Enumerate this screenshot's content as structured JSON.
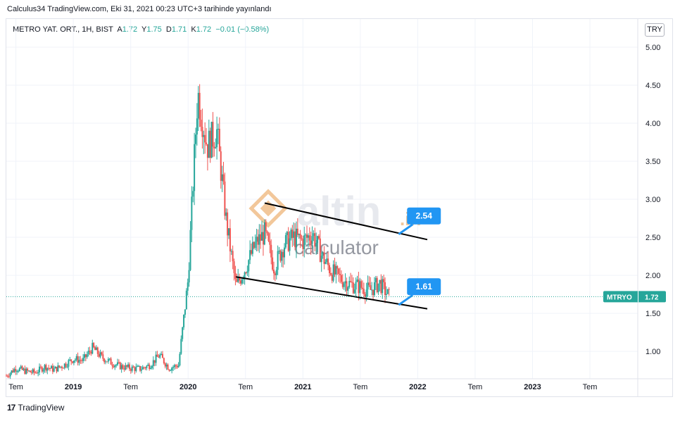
{
  "header": {
    "publisher": "Calculus34 TradingView.com, Eki 31, 2021 00:23 UTC+3 tarihinde yayınlandı"
  },
  "legend": {
    "symbol": "METRO YAT. ORT., 1H, BIST",
    "a_label": "A",
    "a_value": "1.72",
    "y_label": "Y",
    "y_value": "1.75",
    "d_label": "D",
    "d_value": "1.71",
    "k_label": "K",
    "k_value": "1.72",
    "change": "−0.01 (−0.58%)"
  },
  "currency": "TRY",
  "price_tag": {
    "ticker": "MTRYO",
    "value": "1.72"
  },
  "watermark": {
    "brand": "altin",
    "suffix": ".in",
    "sub": "calculator"
  },
  "footer": {
    "brand": "TradingView"
  },
  "colors": {
    "up": "#26a69a",
    "down": "#ef5350",
    "callout": "#2196f3",
    "grid": "#f0f3fa",
    "axis_text": "#131722"
  },
  "chart_data": {
    "type": "candlestick",
    "title": "",
    "y_ticks": [
      "5.00",
      "4.50",
      "4.00",
      "3.50",
      "3.00",
      "2.50",
      "2.00",
      "1.50",
      "1.00"
    ],
    "ylim": [
      0.64,
      5.37
    ],
    "x_ticks": [
      "Tem",
      "2019",
      "Tem",
      "2020",
      "Tem",
      "2021",
      "Tem",
      "2022",
      "Tem",
      "2023",
      "Tem"
    ],
    "grid": true,
    "last_price": 1.72,
    "trendlines": [
      {
        "from": [
          "2020-09",
          2.95
        ],
        "to": [
          "2022-02",
          2.47
        ]
      },
      {
        "from": [
          "2020-06",
          1.98
        ],
        "to": [
          "2022-02",
          1.56
        ]
      }
    ],
    "annotations": [
      {
        "label": "2.54",
        "value": 2.54
      },
      {
        "label": "1.61",
        "value": 1.61
      }
    ],
    "close_path": [
      [
        "2018-06",
        0.68
      ],
      [
        "2018-07",
        0.78
      ],
      [
        "2018-08",
        0.74
      ],
      [
        "2018-09",
        0.72
      ],
      [
        "2018-10",
        0.8
      ],
      [
        "2018-11",
        0.76
      ],
      [
        "2018-12",
        0.82
      ],
      [
        "2019-01",
        0.9
      ],
      [
        "2019-02",
        0.88
      ],
      [
        "2019-03",
        1.05
      ],
      [
        "2019-04",
        0.92
      ],
      [
        "2019-05",
        0.85
      ],
      [
        "2019-06",
        0.8
      ],
      [
        "2019-07",
        0.78
      ],
      [
        "2019-08",
        0.77
      ],
      [
        "2019-09",
        0.82
      ],
      [
        "2019-10",
        0.95
      ],
      [
        "2019-11",
        0.78
      ],
      [
        "2019-12",
        0.82
      ],
      [
        "2020-01",
        1.95
      ],
      [
        "2020-02",
        4.4
      ],
      [
        "2020-03",
        3.7
      ],
      [
        "2020-04",
        3.9
      ],
      [
        "2020-05",
        2.7
      ],
      [
        "2020-06",
        1.85
      ],
      [
        "2020-07",
        2.1
      ],
      [
        "2020-08",
        2.4
      ],
      [
        "2020-09",
        2.55
      ],
      [
        "2020-10",
        2.1
      ],
      [
        "2020-11",
        2.4
      ],
      [
        "2020-12",
        2.5
      ],
      [
        "2021-01",
        2.45
      ],
      [
        "2021-02",
        2.55
      ],
      [
        "2021-03",
        2.25
      ],
      [
        "2021-04",
        2.05
      ],
      [
        "2021-05",
        1.95
      ],
      [
        "2021-06",
        1.88
      ],
      [
        "2021-07",
        1.85
      ],
      [
        "2021-08",
        1.8
      ],
      [
        "2021-09",
        1.9
      ],
      [
        "2021-10",
        1.72
      ]
    ]
  }
}
